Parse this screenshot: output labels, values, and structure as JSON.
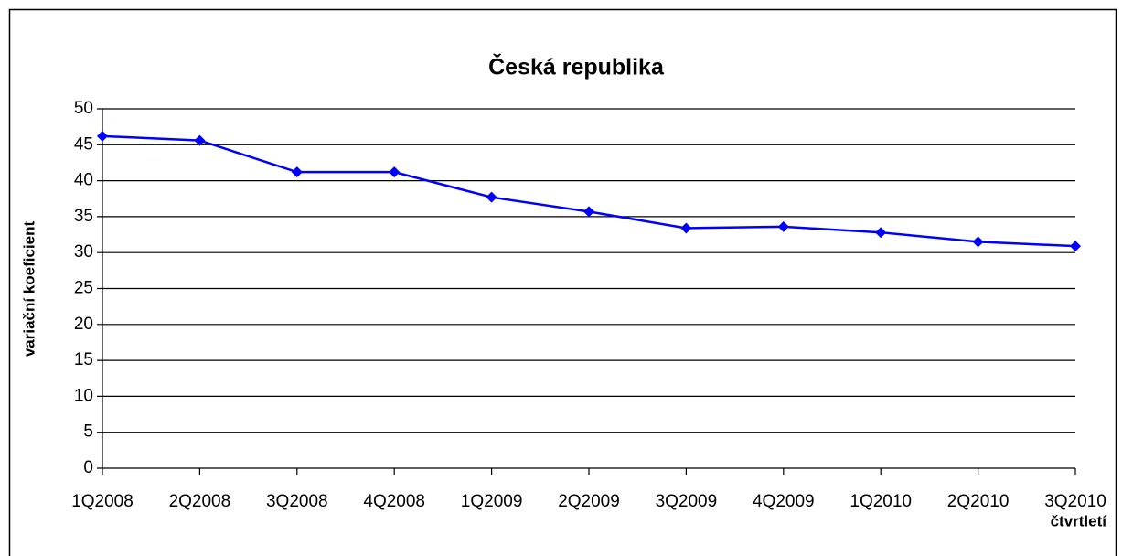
{
  "chart_data": {
    "type": "line",
    "title": "Česká republika",
    "y_label": "variační koeficient",
    "x_label": "čtvrtletí",
    "categories": [
      "1Q2008",
      "2Q2008",
      "3Q2008",
      "4Q2008",
      "1Q2009",
      "2Q2009",
      "3Q2009",
      "4Q2009",
      "1Q2010",
      "2Q2010",
      "3Q2010"
    ],
    "values": [
      46.2,
      45.6,
      41.2,
      41.2,
      37.7,
      35.7,
      33.4,
      33.6,
      32.8,
      31.5,
      30.9
    ],
    "color": "#0000ff",
    "ylim": [
      0,
      50
    ],
    "yticks": [
      0,
      5,
      10,
      15,
      20,
      25,
      30,
      35,
      40,
      45,
      50
    ],
    "grid": true
  }
}
